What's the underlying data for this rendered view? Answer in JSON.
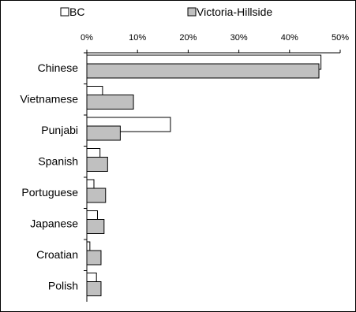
{
  "chart_data": {
    "type": "bar",
    "orientation": "horizontal",
    "categories": [
      "Chinese",
      "Vietnamese",
      "Punjabi",
      "Spanish",
      "Portuguese",
      "Japanese",
      "Croatian",
      "Polish"
    ],
    "series": [
      {
        "name": "BC",
        "values": [
          46.2,
          3.1,
          16.5,
          2.6,
          1.4,
          2.1,
          0.6,
          1.9
        ],
        "color": "#ffffff"
      },
      {
        "name": "Victoria-Hillside",
        "values": [
          45.8,
          9.2,
          6.6,
          4.1,
          3.7,
          3.4,
          2.8,
          2.8
        ],
        "color": "#c0c0c0"
      }
    ],
    "xlim": [
      0,
      50
    ],
    "ticks": [
      "0%",
      "10%",
      "20%",
      "30%",
      "40%",
      "50%"
    ],
    "tick_values": [
      0,
      10,
      20,
      30,
      40,
      50
    ],
    "legend_position": "top",
    "grid": false
  }
}
